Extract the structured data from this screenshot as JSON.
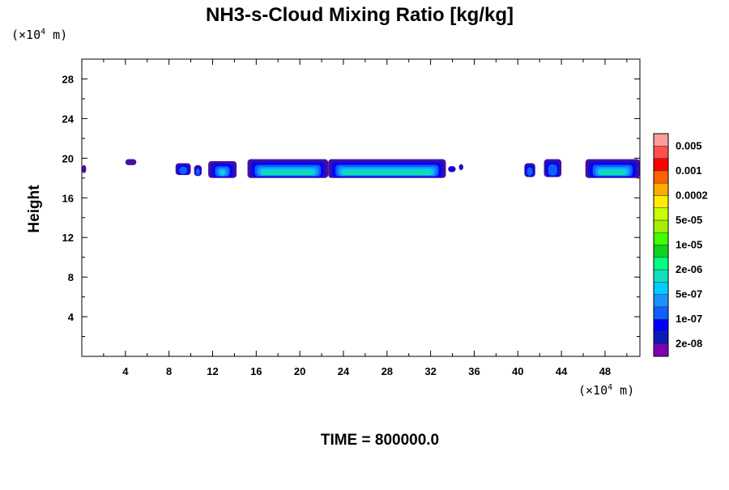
{
  "chart_data": {
    "type": "heatmap",
    "title": "NH3-s-Cloud Mixing Ratio [kg/kg]",
    "ylabel": "Height",
    "xlabel": "",
    "x_unit": "(×10",
    "x_unit_exp": "4",
    "x_unit_tail": " m)",
    "y_unit": "(×10",
    "y_unit_exp": "4",
    "y_unit_tail": " m)",
    "xlim": [
      0,
      51.2
    ],
    "ylim": [
      0,
      30
    ],
    "xticks": [
      "4",
      "8",
      "12",
      "16",
      "20",
      "24",
      "28",
      "32",
      "36",
      "40",
      "44",
      "48"
    ],
    "yticks": [
      "4",
      "8",
      "12",
      "16",
      "20",
      "24",
      "28"
    ],
    "colorbar": {
      "colors": [
        "#7e00b0",
        "#0b1bb5",
        "#0000ff",
        "#1060ff",
        "#1b90ff",
        "#00ccff",
        "#10e0c0",
        "#00ff80",
        "#10d020",
        "#40ff00",
        "#a0f000",
        "#c8ff00",
        "#ffee00",
        "#ffaa00",
        "#ff6000",
        "#ff0000",
        "#ff5050",
        "#ff9c9c"
      ],
      "labels": [
        "2e-08",
        "1e-07",
        "5e-07",
        "2e-06",
        "1e-05",
        "5e-05",
        "0.0002",
        "0.001",
        "0.005"
      ]
    },
    "cloud_patches": [
      {
        "x": [
          0.0,
          0.4
        ],
        "y": [
          18.5,
          19.3
        ],
        "level": 1
      },
      {
        "x": [
          4.0,
          5.0
        ],
        "y": [
          19.3,
          19.9
        ],
        "level": 1
      },
      {
        "x": [
          8.6,
          10.0
        ],
        "y": [
          18.3,
          19.5
        ],
        "level": 4
      },
      {
        "x": [
          10.3,
          11.0
        ],
        "y": [
          18.2,
          19.3
        ],
        "level": 4
      },
      {
        "x": [
          11.6,
          14.2
        ],
        "y": [
          18.0,
          19.7
        ],
        "level": 7
      },
      {
        "x": [
          15.2,
          22.6
        ],
        "y": [
          18.0,
          19.9
        ],
        "level": 7
      },
      {
        "x": [
          22.6,
          33.4
        ],
        "y": [
          18.0,
          19.9
        ],
        "level": 7
      },
      {
        "x": [
          33.6,
          34.3
        ],
        "y": [
          18.6,
          19.2
        ],
        "level": 3
      },
      {
        "x": [
          34.6,
          35.0
        ],
        "y": [
          18.8,
          19.4
        ],
        "level": 2
      },
      {
        "x": [
          40.6,
          41.6
        ],
        "y": [
          18.1,
          19.5
        ],
        "level": 4
      },
      {
        "x": [
          42.4,
          44.0
        ],
        "y": [
          18.1,
          19.9
        ],
        "level": 4
      },
      {
        "x": [
          46.2,
          51.2
        ],
        "y": [
          18.0,
          19.9
        ],
        "level": 7
      }
    ],
    "time_label": "TIME = 800000.0"
  }
}
